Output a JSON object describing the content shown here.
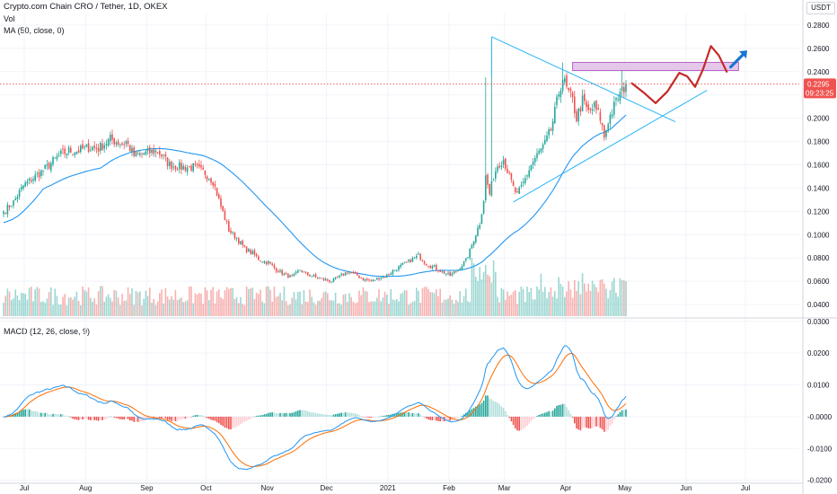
{
  "header": {
    "symbol_title": "Crypto.com Chain CRO / Tether, 1D, OKEX",
    "volume_label": "Vol",
    "ma_label": "MA (50, close, 0)",
    "macd_label": "MACD (12, 26, close, 9)",
    "currency_unit": "USDT"
  },
  "colors": {
    "up": "#26a69a",
    "down": "#ef5350",
    "ma": "#2196f3",
    "macd": "#2196f3",
    "signal": "#ff6d00",
    "zone_fill": "#e1bee7",
    "zone_border": "#ab47bc",
    "projection": "#c62828",
    "arrow": "#1976d2",
    "trendline": "#29b6f6",
    "price_badge": "#ef5350"
  },
  "price_badge": {
    "price": "0.2295",
    "countdown": "09:23:25"
  },
  "chart_data": [
    {
      "type": "candlestick",
      "panel": "price",
      "ylim": [
        0.03,
        0.29
      ],
      "y_ticks": [
        "0.2800",
        "0.2600",
        "0.2400",
        "0.2200",
        "0.2000",
        "0.1800",
        "0.1600",
        "0.1400",
        "0.1200",
        "0.1000",
        "0.0800",
        "0.0600",
        "0.0400"
      ],
      "x_ticks": [
        "Jul",
        "Aug",
        "Sep",
        "Oct",
        "Nov",
        "Dec",
        "2021",
        "Feb",
        "Mar",
        "Apr",
        "May",
        "Jun",
        "Jul"
      ],
      "last_price": 0.2295,
      "anchors_close": [
        [
          0,
          0.12
        ],
        [
          5,
          0.128
        ],
        [
          10,
          0.142
        ],
        [
          16,
          0.15
        ],
        [
          22,
          0.158
        ],
        [
          28,
          0.168
        ],
        [
          33,
          0.172
        ],
        [
          38,
          0.172
        ],
        [
          43,
          0.175
        ],
        [
          48,
          0.174
        ],
        [
          54,
          0.182
        ],
        [
          60,
          0.178
        ],
        [
          62,
          0.18
        ],
        [
          66,
          0.168
        ],
        [
          72,
          0.17
        ],
        [
          78,
          0.172
        ],
        [
          84,
          0.16
        ],
        [
          90,
          0.158
        ],
        [
          96,
          0.158
        ],
        [
          102,
          0.153
        ],
        [
          106,
          0.146
        ],
        [
          110,
          0.124
        ],
        [
          114,
          0.104
        ],
        [
          118,
          0.097
        ],
        [
          122,
          0.088
        ],
        [
          126,
          0.084
        ],
        [
          130,
          0.078
        ],
        [
          134,
          0.076
        ],
        [
          138,
          0.07
        ],
        [
          142,
          0.066
        ],
        [
          146,
          0.063
        ],
        [
          150,
          0.07
        ],
        [
          153,
          0.066
        ],
        [
          157,
          0.064
        ],
        [
          161,
          0.062
        ],
        [
          166,
          0.06
        ],
        [
          170,
          0.064
        ],
        [
          174,
          0.068
        ],
        [
          178,
          0.066
        ],
        [
          182,
          0.062
        ],
        [
          186,
          0.06
        ],
        [
          190,
          0.063
        ],
        [
          194,
          0.065
        ],
        [
          198,
          0.07
        ],
        [
          202,
          0.074
        ],
        [
          206,
          0.078
        ],
        [
          210,
          0.082
        ],
        [
          214,
          0.075
        ],
        [
          218,
          0.072
        ],
        [
          222,
          0.068
        ],
        [
          226,
          0.065
        ],
        [
          230,
          0.07
        ],
        [
          234,
          0.078
        ],
        [
          236,
          0.086
        ],
        [
          238,
          0.096
        ],
        [
          241,
          0.11
        ],
        [
          243,
          0.13
        ],
        [
          244,
          0.15
        ],
        [
          246,
          0.135
        ],
        [
          248,
          0.15
        ],
        [
          250,
          0.16
        ],
        [
          253,
          0.165
        ],
        [
          256,
          0.15
        ],
        [
          258,
          0.14
        ],
        [
          260,
          0.134
        ],
        [
          263,
          0.144
        ],
        [
          267,
          0.16
        ],
        [
          270,
          0.168
        ],
        [
          274,
          0.178
        ],
        [
          277,
          0.19
        ],
        [
          279,
          0.205
        ],
        [
          281,
          0.222
        ],
        [
          283,
          0.235
        ],
        [
          285,
          0.225
        ],
        [
          288,
          0.215
        ],
        [
          290,
          0.2
        ],
        [
          293,
          0.215
        ],
        [
          296,
          0.205
        ],
        [
          299,
          0.21
        ],
        [
          302,
          0.2
        ],
        [
          304,
          0.184
        ],
        [
          306,
          0.198
        ],
        [
          309,
          0.21
        ],
        [
          311,
          0.218
        ],
        [
          313,
          0.223
        ],
        [
          315,
          0.2295
        ]
      ],
      "spikes": [
        {
          "index": 244,
          "high": 0.235
        },
        {
          "index": 247,
          "high": 0.27
        },
        {
          "index": 283,
          "high": 0.248
        },
        {
          "index": 313,
          "high": 0.241
        }
      ]
    },
    {
      "type": "line",
      "panel": "price",
      "name": "MA (50, close, 0)",
      "period": 50
    },
    {
      "type": "bar",
      "panel": "price",
      "name": "Vol"
    },
    {
      "type": "line",
      "panel": "macd",
      "name": "MACD (12, 26, close, 9)",
      "ylim": [
        -0.0215,
        0.0305
      ],
      "y_ticks": [
        "0.0300",
        "0.0200",
        "0.0100",
        "-0.0000",
        "-0.0100",
        "-0.0200"
      ],
      "fast": 12,
      "slow": 26,
      "signal": 9
    }
  ]
}
